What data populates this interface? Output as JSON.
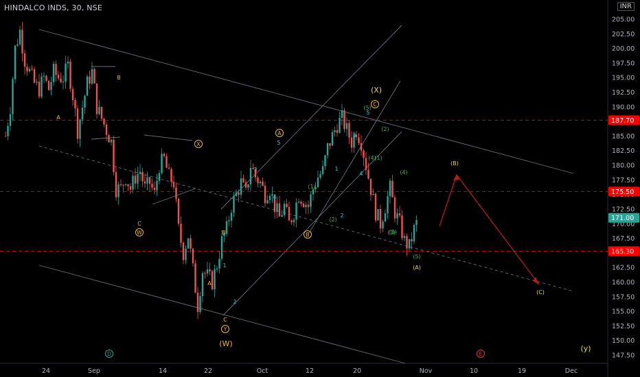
{
  "header": {
    "symbol_line": "HINDALCO INDS, 30, NSE",
    "currency": "INR"
  },
  "chart_data": {
    "type": "candlestick",
    "symbol": "HINDALCO INDS",
    "interval": "30",
    "exchange": "NSE",
    "ylim": [
      145,
      207.5
    ],
    "y_ticks": [
      147.5,
      150,
      152.5,
      155,
      157.5,
      160,
      162.5,
      165,
      167.5,
      170,
      172.5,
      175,
      177.5,
      180,
      182.5,
      185,
      187.5,
      190,
      192.5,
      195,
      197.5,
      200,
      202.5,
      205
    ],
    "y_tick_labels": [
      "147.50",
      "150.00",
      "152.50",
      "155.00",
      "157.50",
      "160.00",
      "162.50",
      "165.00",
      "167.50",
      "170.00",
      "172.50",
      "175.00",
      "177.50",
      "180.00",
      "182.50",
      "185.00",
      "187.50",
      "190.00",
      "192.50",
      "195.00",
      "197.50",
      "200.00",
      "202.50",
      "205.00"
    ],
    "x_tick_labels": [
      "24",
      "Sep",
      "14",
      "22",
      "Oct",
      "12",
      "20",
      "Nov",
      "10",
      "19",
      "Dec"
    ],
    "price_markers": [
      {
        "value": 187.7,
        "label": "187.70",
        "color": "#ff0000"
      },
      {
        "value": 175.5,
        "label": "175.50",
        "color": "#ff0000"
      },
      {
        "value": 165.3,
        "label": "165.30",
        "color": "#ff0000"
      },
      {
        "value": 171.0,
        "label": "171.00",
        "color": "#26a69a"
      }
    ],
    "waypoints": [
      [
        0,
        185
      ],
      [
        2,
        190
      ],
      [
        4,
        200
      ],
      [
        6,
        203
      ],
      [
        8,
        198
      ],
      [
        10,
        196
      ],
      [
        12,
        194
      ],
      [
        14,
        193
      ],
      [
        16,
        195
      ],
      [
        18,
        193
      ],
      [
        20,
        196
      ],
      [
        22,
        195
      ],
      [
        24,
        195
      ],
      [
        26,
        197
      ],
      [
        28,
        192
      ],
      [
        30,
        186
      ],
      [
        32,
        190
      ],
      [
        34,
        194
      ],
      [
        36,
        196
      ],
      [
        38,
        190
      ],
      [
        40,
        188
      ],
      [
        42,
        186
      ],
      [
        44,
        184
      ],
      [
        46,
        176
      ],
      [
        48,
        176
      ],
      [
        50,
        178
      ],
      [
        52,
        176
      ],
      [
        54,
        178
      ],
      [
        56,
        179
      ],
      [
        58,
        176
      ],
      [
        60,
        177
      ],
      [
        62,
        175
      ],
      [
        64,
        180
      ],
      [
        66,
        181
      ],
      [
        68,
        178
      ],
      [
        70,
        177
      ],
      [
        72,
        169
      ],
      [
        74,
        165
      ],
      [
        76,
        168
      ],
      [
        78,
        162
      ],
      [
        80,
        156
      ],
      [
        82,
        162
      ],
      [
        84,
        161
      ],
      [
        86,
        160
      ],
      [
        88,
        163
      ],
      [
        90,
        167
      ],
      [
        92,
        169
      ],
      [
        94,
        173
      ],
      [
        96,
        175
      ],
      [
        98,
        177
      ],
      [
        100,
        175
      ],
      [
        102,
        180
      ],
      [
        104,
        178
      ],
      [
        106,
        177
      ],
      [
        108,
        175
      ],
      [
        110,
        176
      ],
      [
        112,
        173
      ],
      [
        114,
        171
      ],
      [
        116,
        173
      ],
      [
        118,
        170
      ],
      [
        120,
        172
      ],
      [
        122,
        175
      ],
      [
        124,
        174
      ],
      [
        126,
        173
      ],
      [
        128,
        176
      ],
      [
        130,
        178
      ],
      [
        132,
        179
      ],
      [
        134,
        183
      ],
      [
        136,
        185
      ],
      [
        138,
        187
      ],
      [
        140,
        188
      ],
      [
        142,
        186
      ],
      [
        144,
        184
      ],
      [
        146,
        186
      ],
      [
        148,
        184
      ],
      [
        150,
        180
      ],
      [
        152,
        176
      ],
      [
        154,
        172
      ],
      [
        156,
        170
      ],
      [
        158,
        173
      ],
      [
        160,
        176
      ],
      [
        162,
        172
      ],
      [
        164,
        170
      ],
      [
        166,
        167
      ],
      [
        168,
        166
      ],
      [
        170,
        169
      ],
      [
        172,
        171
      ]
    ],
    "labels": [
      {
        "t": "A",
        "color": "#f0b43c"
      },
      {
        "t": "B",
        "color": "#f0b43c"
      },
      {
        "t": "C",
        "color": "#f0b43c"
      },
      {
        "t": "W",
        "color": "#f0b43c",
        "circle": true
      },
      {
        "t": "X",
        "color": "#f0b43c",
        "circle": true
      },
      {
        "t": "A",
        "color": "#f0b43c"
      },
      {
        "t": "B",
        "color": "#f0b43c"
      },
      {
        "t": "C",
        "color": "#f0b43c"
      },
      {
        "t": "Y",
        "color": "#f0b43c",
        "circle": true
      },
      {
        "t": "(W)",
        "color": "#f0b43c"
      },
      {
        "t": "1",
        "color": "#26c6da"
      },
      {
        "t": "2",
        "color": "#26c6da"
      },
      {
        "t": "3",
        "color": "#26c6da"
      },
      {
        "t": "4",
        "color": "#26c6da"
      },
      {
        "t": "5",
        "color": "#26c6da"
      },
      {
        "t": "A",
        "color": "#f0b43c",
        "circle": true
      },
      {
        "t": "B",
        "color": "#f0b43c",
        "circle": true
      },
      {
        "t": "(1)",
        "color": "#4caf50"
      },
      {
        "t": "(2)",
        "color": "#4caf50"
      },
      {
        "t": "1",
        "color": "#26c6da"
      },
      {
        "t": "2",
        "color": "#26c6da"
      },
      {
        "t": "3",
        "color": "#26c6da"
      },
      {
        "t": "4",
        "color": "#26c6da"
      },
      {
        "t": "5",
        "color": "#26c6da"
      },
      {
        "t": "(3)",
        "color": "#4caf50"
      },
      {
        "t": "(5)",
        "color": "#4caf50"
      },
      {
        "t": "C",
        "color": "#f0b43c",
        "circle": true
      },
      {
        "t": "(X)",
        "color": "#f0d24c"
      },
      {
        "t": "(2)",
        "color": "#4caf50"
      },
      {
        "t": "(4)",
        "color": "#4caf50"
      },
      {
        "t": "(1)",
        "color": "#4caf50"
      },
      {
        "t": "(4)",
        "color": "#4caf50"
      },
      {
        "t": "(3)",
        "color": "#4caf50"
      },
      {
        "t": "(5)",
        "color": "#4caf50"
      },
      {
        "t": "(A)",
        "color": "#f0d24c"
      },
      {
        "t": "(B)",
        "color": "#f0d24c"
      },
      {
        "t": "(C)",
        "color": "#f0d24c"
      },
      {
        "t": "D",
        "color": "#26a69a",
        "circle": true
      },
      {
        "t": "E",
        "color": "#e53935",
        "circle": true
      },
      {
        "t": "(y)",
        "color": "#f0d24c"
      }
    ],
    "projection_path": [
      [
        640,
        330
      ],
      [
        665,
        255
      ],
      [
        785,
        415
      ]
    ]
  }
}
